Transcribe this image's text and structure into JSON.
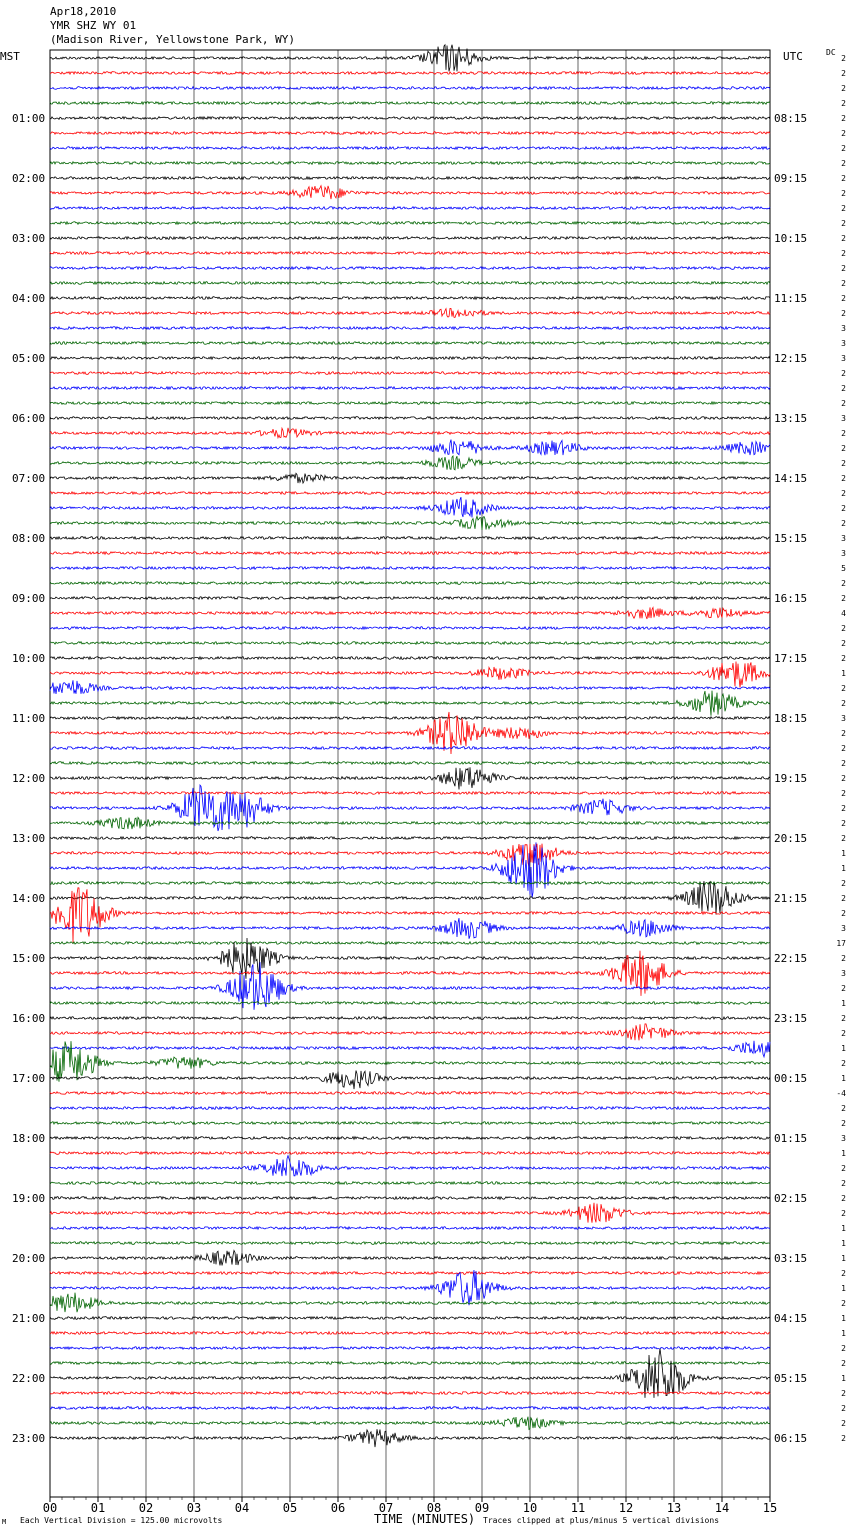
{
  "header": {
    "date": "Apr18,2010",
    "station": "YMR SHZ WY 01",
    "location": "(Madison River, Yellowstone Park, WY)"
  },
  "axes": {
    "left_zone": "MST",
    "right_zone": "UTC",
    "dc_label": "DC",
    "xlabel": "TIME (MINUTES)",
    "footer_left": "Each Vertical Division =  125.00 microvolts",
    "footer_right": "Traces clipped at plus/minus 5 vertical divisions",
    "corner_mark": "M"
  },
  "colors": [
    "#000000",
    "#ff0000",
    "#0000ff",
    "#006400"
  ],
  "chart_data": {
    "type": "line",
    "title": "",
    "x_ticks": [
      "00",
      "01",
      "02",
      "03",
      "04",
      "05",
      "06",
      "07",
      "08",
      "09",
      "10",
      "11",
      "12",
      "13",
      "14",
      "15"
    ],
    "xlim": [
      0,
      15
    ],
    "trace_count": 93,
    "left_hour_labels": [
      "01:00",
      "02:00",
      "03:00",
      "04:00",
      "05:00",
      "06:00",
      "07:00",
      "08:00",
      "09:00",
      "10:00",
      "11:00",
      "12:00",
      "13:00",
      "14:00",
      "15:00",
      "16:00",
      "17:00",
      "18:00",
      "19:00",
      "20:00",
      "21:00",
      "22:00",
      "23:00"
    ],
    "right_hour_labels": [
      "08:15",
      "09:15",
      "10:15",
      "11:15",
      "12:15",
      "13:15",
      "14:15",
      "15:15",
      "16:15",
      "17:15",
      "18:15",
      "19:15",
      "20:15",
      "21:15",
      "22:15",
      "23:15",
      "00:15",
      "01:15",
      "02:15",
      "03:15",
      "04:15",
      "05:15",
      "06:15"
    ],
    "dc_values": [
      "2",
      "2",
      "2",
      "2",
      "2",
      "2",
      "2",
      "2",
      "2",
      "2",
      "2",
      "2",
      "2",
      "2",
      "2",
      "2",
      "2",
      "2",
      "3",
      "3",
      "3",
      "2",
      "2",
      "2",
      "3",
      "2",
      "2",
      "2",
      "2",
      "2",
      "2",
      "2",
      "3",
      "3",
      "5",
      "2",
      "2",
      "4",
      "2",
      "2",
      "2",
      "1",
      "2",
      "2",
      "3",
      "2",
      "2",
      "2",
      "2",
      "2",
      "2",
      "2",
      "2",
      "1",
      "1",
      "2",
      "2",
      "2",
      "3",
      "17",
      "2",
      "3",
      "2",
      "1",
      "2",
      "2",
      "1",
      "2",
      "1",
      "-4",
      "2",
      "2",
      "3",
      "1",
      "2",
      "2",
      "2",
      "2",
      "1",
      "1",
      "1",
      "2",
      "1",
      "2",
      "1",
      "1",
      "2",
      "2",
      "1",
      "2",
      "2",
      "2",
      "2"
    ],
    "events": [
      {
        "trace": 0,
        "minute": 8.35,
        "amplitude": 14
      },
      {
        "trace": 9,
        "minute": 5.65,
        "amplitude": 7
      },
      {
        "trace": 17,
        "minute": 8.5,
        "amplitude": 4
      },
      {
        "trace": 25,
        "minute": 4.9,
        "amplitude": 4
      },
      {
        "trace": 26,
        "minute": 8.5,
        "amplitude": 8
      },
      {
        "trace": 26,
        "minute": 10.5,
        "amplitude": 7
      },
      {
        "trace": 26,
        "minute": 14.6,
        "amplitude": 6
      },
      {
        "trace": 27,
        "minute": 8.4,
        "amplitude": 6
      },
      {
        "trace": 28,
        "minute": 5.2,
        "amplitude": 4
      },
      {
        "trace": 30,
        "minute": 8.6,
        "amplitude": 10
      },
      {
        "trace": 31,
        "minute": 9.0,
        "amplitude": 6
      },
      {
        "trace": 37,
        "minute": 12.4,
        "amplitude": 5
      },
      {
        "trace": 37,
        "minute": 13.9,
        "amplitude": 5
      },
      {
        "trace": 41,
        "minute": 9.4,
        "amplitude": 6
      },
      {
        "trace": 41,
        "minute": 14.3,
        "amplitude": 14
      },
      {
        "trace": 42,
        "minute": 0.4,
        "amplitude": 8
      },
      {
        "trace": 43,
        "minute": 13.8,
        "amplitude": 12
      },
      {
        "trace": 45,
        "minute": 8.4,
        "amplitude": 22
      },
      {
        "trace": 45,
        "minute": 9.8,
        "amplitude": 6
      },
      {
        "trace": 48,
        "minute": 8.7,
        "amplitude": 12
      },
      {
        "trace": 50,
        "minute": 3.2,
        "amplitude": 24
      },
      {
        "trace": 50,
        "minute": 4.0,
        "amplitude": 18
      },
      {
        "trace": 50,
        "minute": 11.5,
        "amplitude": 8
      },
      {
        "trace": 51,
        "minute": 1.6,
        "amplitude": 6
      },
      {
        "trace": 53,
        "minute": 10.0,
        "amplitude": 14
      },
      {
        "trace": 54,
        "minute": 10.0,
        "amplitude": 30
      },
      {
        "trace": 56,
        "minute": 13.8,
        "amplitude": 18
      },
      {
        "trace": 57,
        "minute": 0.6,
        "amplitude": 30
      },
      {
        "trace": 58,
        "minute": 8.7,
        "amplitude": 10
      },
      {
        "trace": 58,
        "minute": 12.4,
        "amplitude": 8
      },
      {
        "trace": 60,
        "minute": 4.1,
        "amplitude": 20
      },
      {
        "trace": 61,
        "minute": 12.3,
        "amplitude": 22
      },
      {
        "trace": 62,
        "minute": 4.3,
        "amplitude": 26
      },
      {
        "trace": 65,
        "minute": 12.4,
        "amplitude": 8
      },
      {
        "trace": 66,
        "minute": 14.8,
        "amplitude": 8
      },
      {
        "trace": 67,
        "minute": 0.4,
        "amplitude": 22
      },
      {
        "trace": 67,
        "minute": 2.8,
        "amplitude": 6
      },
      {
        "trace": 68,
        "minute": 6.3,
        "amplitude": 10
      },
      {
        "trace": 74,
        "minute": 5.0,
        "amplitude": 12
      },
      {
        "trace": 77,
        "minute": 11.4,
        "amplitude": 10
      },
      {
        "trace": 80,
        "minute": 3.7,
        "amplitude": 7
      },
      {
        "trace": 82,
        "minute": 8.7,
        "amplitude": 18
      },
      {
        "trace": 83,
        "minute": 0.4,
        "amplitude": 10
      },
      {
        "trace": 88,
        "minute": 12.7,
        "amplitude": 30
      },
      {
        "trace": 91,
        "minute": 9.9,
        "amplitude": 6
      },
      {
        "trace": 92,
        "minute": 6.8,
        "amplitude": 8
      }
    ]
  }
}
